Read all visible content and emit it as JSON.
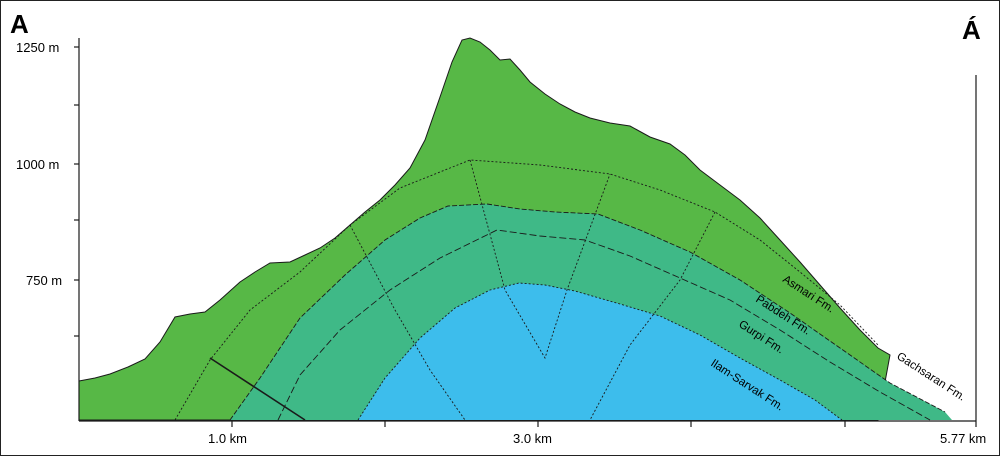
{
  "section": {
    "start_label": "A",
    "end_label": "Á"
  },
  "elevation_axis": {
    "ticks": [
      "1250 m",
      "1000 m",
      "750 m"
    ]
  },
  "distance_axis": {
    "ticks": [
      "1.0 km",
      "3.0 km",
      "5.77 km"
    ]
  },
  "formations": {
    "asmari": "Asmari Fm.",
    "pabdeh": "Pabdeh Fm.",
    "gurpi": "Gurpi Fm.",
    "ilam_sarvak": "Ilam-Sarvak Fm.",
    "gachsaran": "Gachsaran Fm."
  },
  "colors": {
    "asmari": "#57b846",
    "pabdeh_gurpi": "#3fb987",
    "ilam_sarvak": "#3dbdec",
    "gachsaran": "#ffffff",
    "outline": "#1a1a1a"
  }
}
